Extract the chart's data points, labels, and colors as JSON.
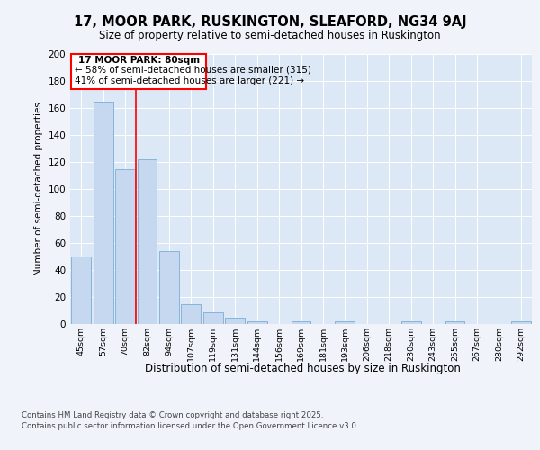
{
  "title1": "17, MOOR PARK, RUSKINGTON, SLEAFORD, NG34 9AJ",
  "title2": "Size of property relative to semi-detached houses in Ruskington",
  "xlabel": "Distribution of semi-detached houses by size in Ruskington",
  "ylabel": "Number of semi-detached properties",
  "categories": [
    "45sqm",
    "57sqm",
    "70sqm",
    "82sqm",
    "94sqm",
    "107sqm",
    "119sqm",
    "131sqm",
    "144sqm",
    "156sqm",
    "169sqm",
    "181sqm",
    "193sqm",
    "206sqm",
    "218sqm",
    "230sqm",
    "243sqm",
    "255sqm",
    "267sqm",
    "280sqm",
    "292sqm"
  ],
  "values": [
    50,
    165,
    115,
    122,
    54,
    15,
    9,
    5,
    2,
    0,
    2,
    0,
    2,
    0,
    0,
    2,
    0,
    2,
    0,
    0,
    2
  ],
  "bar_color": "#c5d8f0",
  "bar_edge_color": "#7aadd4",
  "red_line_x": 2.5,
  "annotation_title": "17 MOOR PARK: 80sqm",
  "annotation_line1": "← 58% of semi-detached houses are smaller (315)",
  "annotation_line2": "41% of semi-detached houses are larger (221) →",
  "footer1": "Contains HM Land Registry data © Crown copyright and database right 2025.",
  "footer2": "Contains public sector information licensed under the Open Government Licence v3.0.",
  "fig_bg": "#f0f4fa",
  "plot_bg": "#dce8f5",
  "ylim": [
    0,
    200
  ],
  "yticks": [
    0,
    20,
    40,
    60,
    80,
    100,
    120,
    140,
    160,
    180,
    200
  ]
}
